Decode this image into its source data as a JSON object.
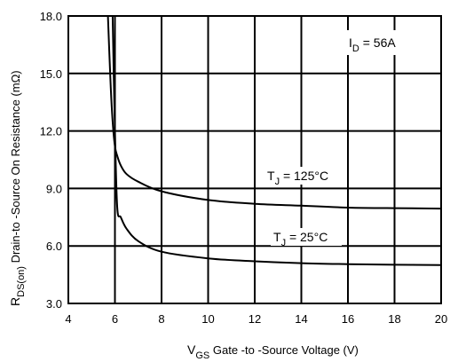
{
  "chart_data": {
    "type": "line",
    "x": [
      5.7,
      5.8,
      5.9,
      6.0,
      6.1,
      6.25,
      6.5,
      7.0,
      8.0,
      10.0,
      12.0,
      14.0,
      16.0,
      18.0,
      20.0
    ],
    "series": [
      {
        "label": "T_J = 125°C",
        "values": [
          18.0,
          14.8,
          12.5,
          11.2,
          10.7,
          10.2,
          9.75,
          9.35,
          8.85,
          8.4,
          8.2,
          8.1,
          8.0,
          7.97,
          7.95
        ]
      },
      {
        "label": "T_J = 25°C",
        "values": [
          null,
          null,
          18.0,
          12.0,
          8.0,
          7.5,
          6.9,
          6.25,
          5.7,
          5.35,
          5.2,
          5.1,
          5.05,
          5.02,
          5.0
        ]
      }
    ],
    "xlim": [
      4,
      20
    ],
    "ylim": [
      3.0,
      18.0
    ],
    "x_ticks": [
      "4",
      "6",
      "8",
      "10",
      "12",
      "14",
      "16",
      "18",
      "20"
    ],
    "y_ticks": [
      "3.0",
      "6.0",
      "9.0",
      "12.0",
      "15.0",
      "18.0"
    ],
    "xlabel": {
      "main": "V",
      "sub": "GS",
      "rest": " Gate -to -Source Voltage  (V)"
    },
    "ylabel": {
      "main": "R",
      "sub": "DS(on)",
      "rest": " Drain-to -Source On Resistance (mΩ)"
    },
    "annotations": [
      {
        "main": "I",
        "sub": "D",
        "rest": " = 56A"
      },
      {
        "main": "T",
        "sub": "J",
        "rest": " = 125°C"
      },
      {
        "main": "T",
        "sub": "J",
        "rest": " = 25°C"
      }
    ],
    "grid": true,
    "colors": {
      "line": "#000000",
      "grid": "#000000",
      "background": "#ffffff"
    }
  }
}
